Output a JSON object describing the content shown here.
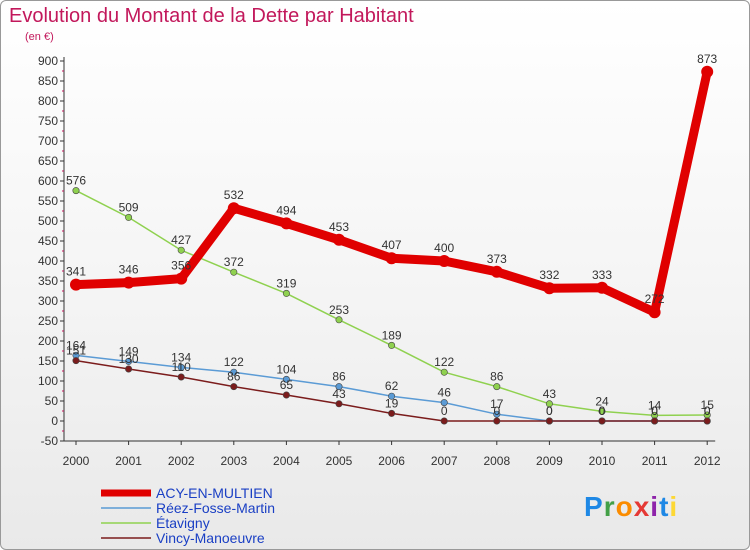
{
  "title": "Evolution du Montant de la Dette par Habitant",
  "subtitle": "(en €)",
  "logo": "Proxiti",
  "chart_data": {
    "type": "line",
    "x": [
      "2000",
      "2001",
      "2002",
      "2003",
      "2004",
      "2005",
      "2006",
      "2007",
      "2008",
      "2009",
      "2010",
      "2011",
      "2012"
    ],
    "y_ticks": [
      "-50",
      "0",
      "50",
      "100",
      "150",
      "200",
      "250",
      "300",
      "350",
      "400",
      "450",
      "500",
      "550",
      "600",
      "650",
      "700",
      "750",
      "800",
      "850",
      "900"
    ],
    "ylim": [
      -50,
      900
    ],
    "grid": false,
    "legend_position": "bottom-left",
    "series": [
      {
        "name": "ACY-EN-MULTIEN",
        "color": "#e00000",
        "values": [
          341,
          346,
          356,
          532,
          494,
          453,
          407,
          400,
          373,
          332,
          333,
          272,
          873
        ],
        "labels": [
          "341",
          "346",
          "356",
          "532",
          "494",
          "453",
          "407",
          "400",
          "373",
          "332",
          "333",
          "272",
          "873"
        ]
      },
      {
        "name": "Réez-Fosse-Martin",
        "color": "#5b9bd5",
        "values": [
          164,
          149,
          134,
          122,
          104,
          86,
          62,
          46,
          17,
          0,
          0,
          0,
          0
        ],
        "labels": [
          "164",
          "149",
          "134",
          "122",
          "104",
          "86",
          "62",
          "46",
          "17",
          "0",
          "0",
          "0",
          "0"
        ]
      },
      {
        "name": "Étavigny",
        "color": "#8fd14f",
        "values": [
          576,
          509,
          427,
          372,
          319,
          253,
          189,
          122,
          86,
          43,
          24,
          14,
          15
        ],
        "labels": [
          "576",
          "509",
          "427",
          "372",
          "319",
          "253",
          "189",
          "122",
          "86",
          "43",
          "24",
          "14",
          "15"
        ]
      },
      {
        "name": "Vincy-Manoeuvre",
        "color": "#7b1c1c",
        "values": [
          151,
          130,
          110,
          86,
          65,
          43,
          19,
          0,
          0,
          0,
          0,
          0,
          0
        ],
        "labels": [
          "151",
          "130",
          "110",
          "86",
          "65",
          "43",
          "19",
          "0",
          "0",
          "0",
          "0",
          "0",
          "0"
        ]
      }
    ]
  }
}
